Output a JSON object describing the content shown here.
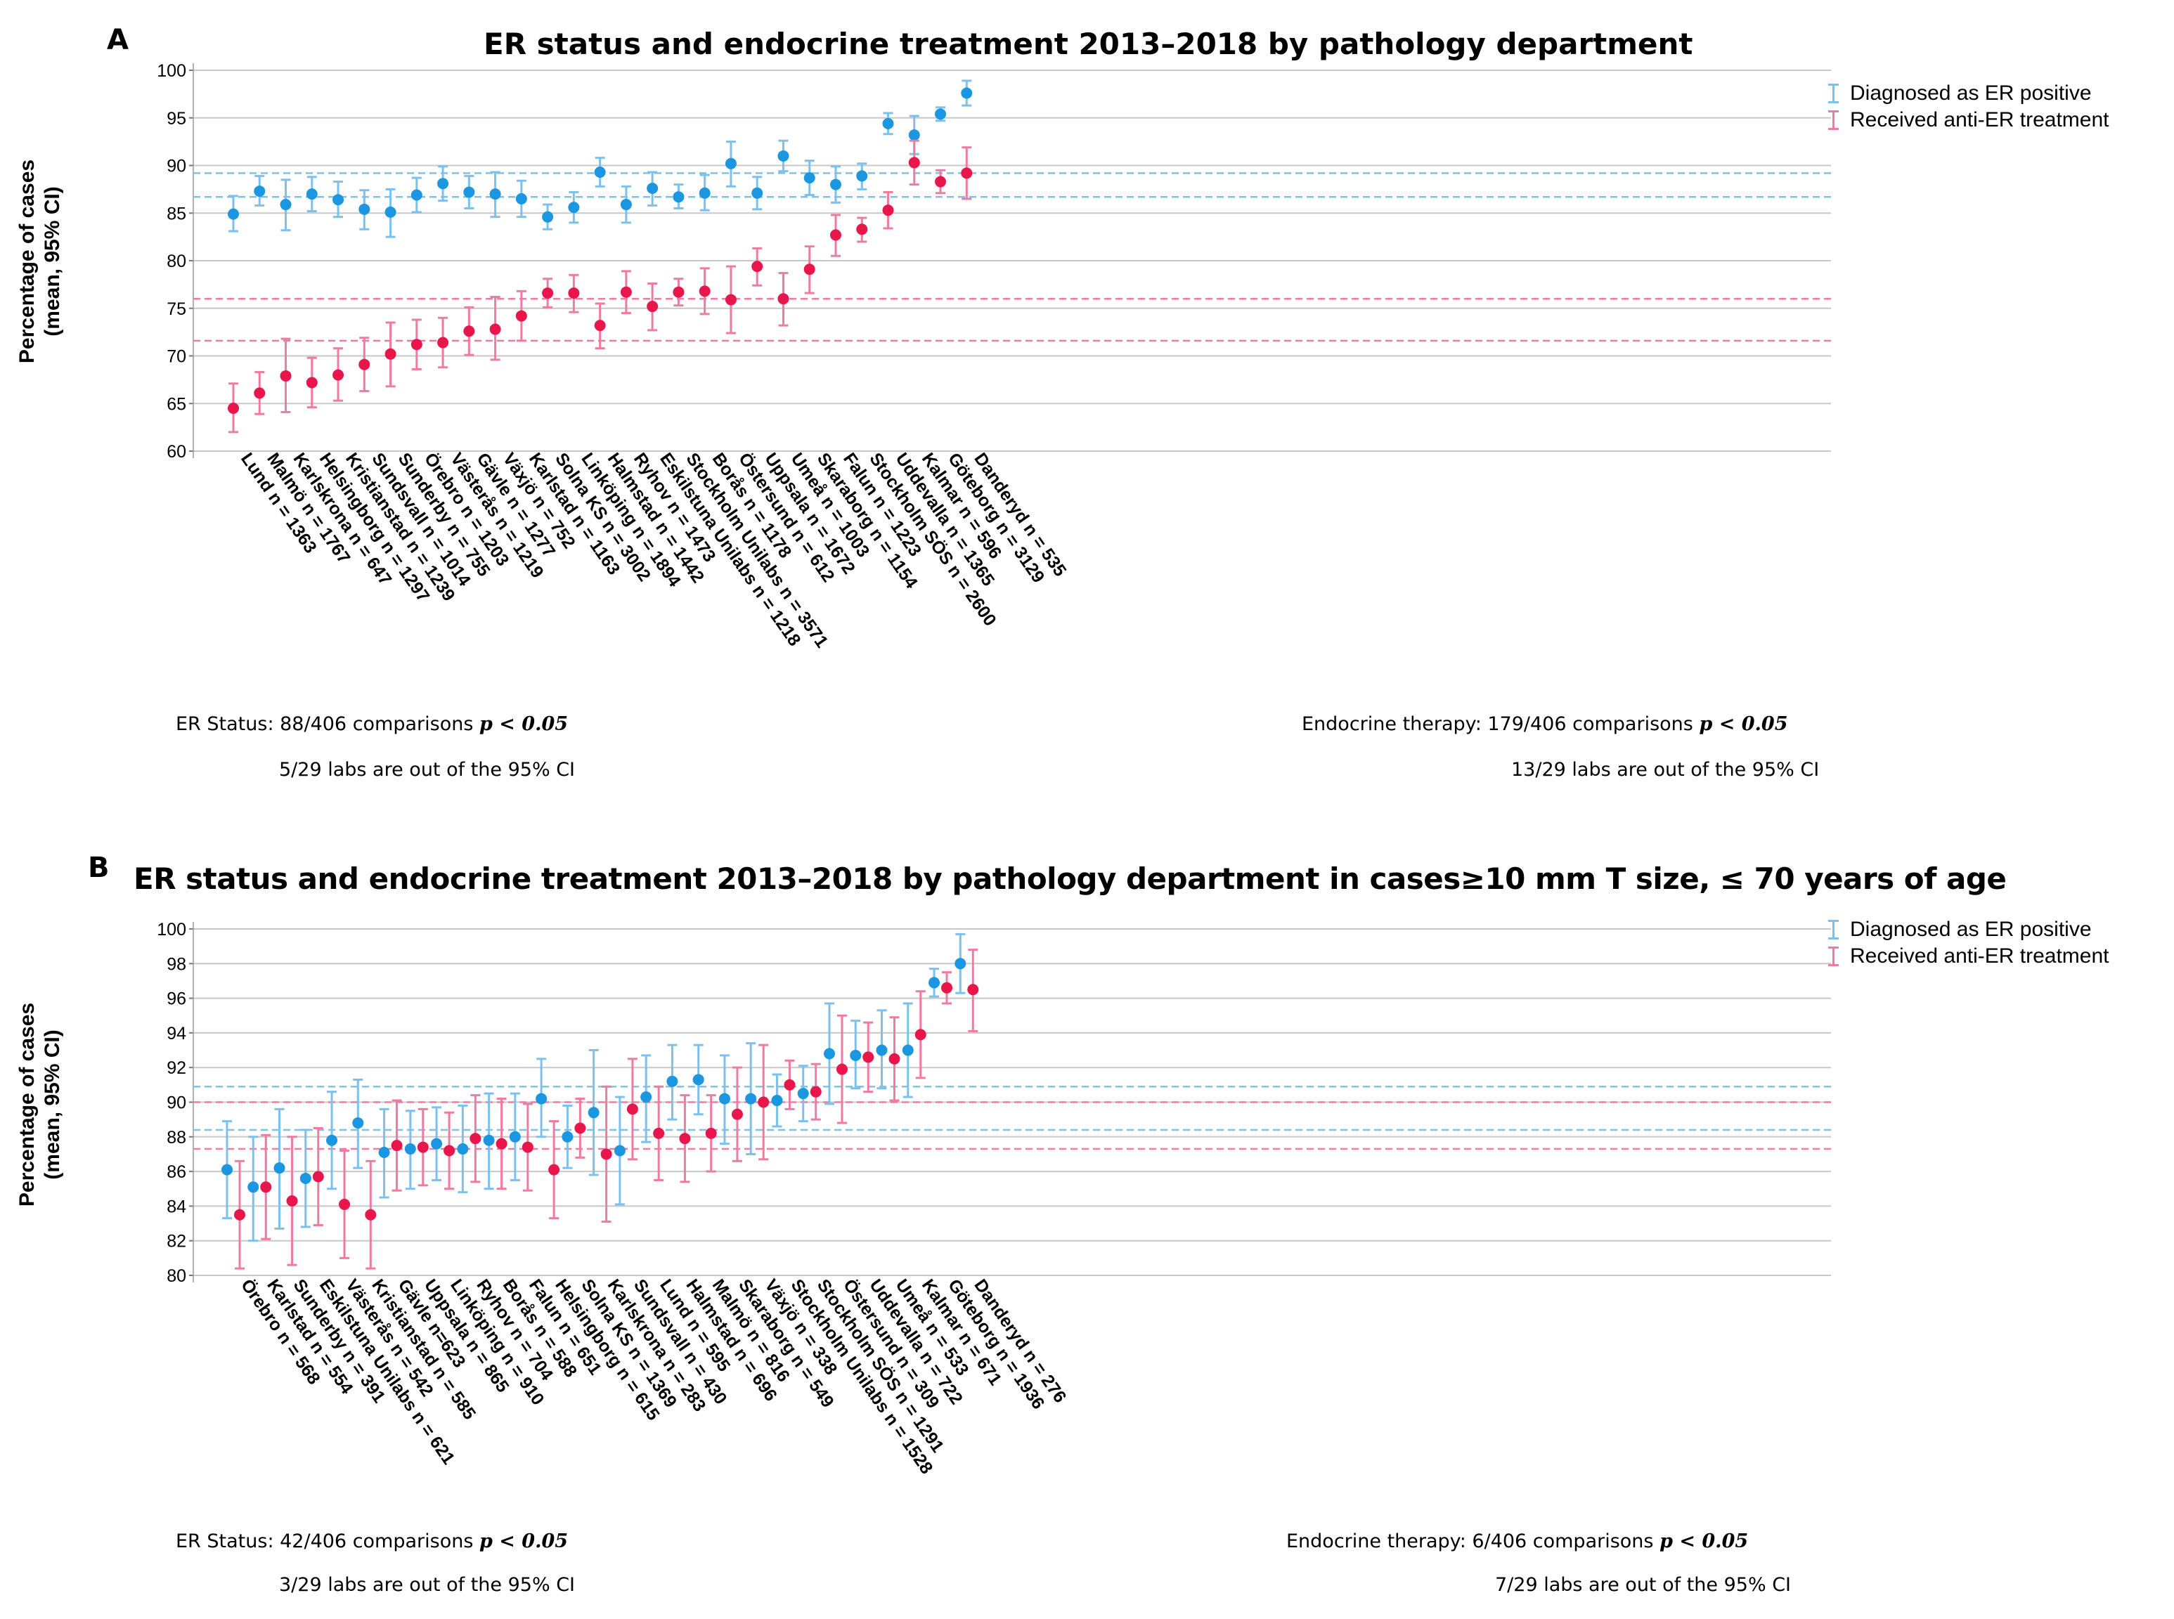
{
  "colors": {
    "er": "#1b96e0",
    "treat": "#e8164a",
    "ci_er": "#7cc0ee",
    "ci_treat": "#ef7ba0",
    "grid": "#c8c8c8"
  },
  "legend": {
    "er": "Diagnosed as ER positive",
    "treat": "Received anti-ER treatment"
  },
  "panels": [
    {
      "letter": "A",
      "title": "ER status and endocrine treatment 2013–2018 by pathology department",
      "notes": {
        "er_line1": "ER Status: 88/406 comparisons",
        "er_line2": "5/29 labs are out of the 95% CI",
        "et_line1": "Endocrine therapy: 179/406 comparisons",
        "et_line2": "13/29 labs are out of the 95% CI",
        "p_text": "p < 0.05"
      }
    },
    {
      "letter": "B",
      "title": "ER status and endocrine treatment 2013–2018 by pathology department in cases≥10 mm T size, ≤ 70 years of age",
      "notes": {
        "er_line1": "ER Status: 42/406 comparisons",
        "er_line2": "3/29 labs are out of the 95% CI",
        "et_line1": "Endocrine therapy: 6/406 comparisons",
        "et_line2": "7/29 labs are out of the 95% CI",
        "p_text": "p < 0.05"
      }
    }
  ],
  "chart_data": [
    {
      "type": "errorbar",
      "title": "ER status and endocrine treatment 2013–2018 by pathology department",
      "ylabel_line1": "Percentage of cases",
      "ylabel_line2": "(mean, 95% CI)",
      "ylim": [
        60,
        100
      ],
      "yticks": [
        60,
        65,
        70,
        75,
        80,
        85,
        90,
        95,
        100
      ],
      "categories": [
        "Lund n = 1363",
        "Malmö n = 1767",
        "Karlskrona n = 647",
        "Helsingborg n = 1297",
        "Kristianstad n = 1239",
        "Sundsvall n = 1014",
        "Sunderby n = 755",
        "Örebro n = 1203",
        "Västerås n = 1219",
        "Gävle n = 1277",
        "Växjö n = 752",
        "Karlstad n = 1163",
        "Solna KS n = 3002",
        "Linköping n = 1894",
        "Halmstad n = 1442",
        "Ryhov n = 1473",
        "Eskilstuna Unilabs n = 1218",
        "Stockholm Unilabs n = 3571",
        "Borås n = 1178",
        "Östersund n = 612",
        "Uppsala n = 1672",
        "Umeå n = 1003",
        "Skaraborg n = 1154",
        "Falun n = 1223",
        "Stockholm SÖS n = 2600",
        "Uddevalla n = 1365",
        "Kalmar n = 596",
        "Göteborg n = 3129",
        "Danderyd n = 535"
      ],
      "series": [
        {
          "name": "Diagnosed as ER positive",
          "values": [
            84.9,
            87.3,
            85.9,
            87.0,
            86.4,
            85.4,
            85.1,
            86.9,
            88.1,
            87.2,
            87.0,
            86.5,
            84.6,
            85.6,
            89.3,
            85.9,
            87.6,
            86.7,
            87.1,
            90.2,
            87.1,
            91.0,
            88.7,
            88.0,
            88.9,
            94.4,
            93.2,
            95.4,
            97.6
          ],
          "lower": [
            83.1,
            85.8,
            83.2,
            85.2,
            84.6,
            83.3,
            82.5,
            85.1,
            86.3,
            85.5,
            84.6,
            84.6,
            83.3,
            84.0,
            87.8,
            84.0,
            85.8,
            85.5,
            85.3,
            87.8,
            85.4,
            89.4,
            86.9,
            86.1,
            87.5,
            93.3,
            91.2,
            94.7,
            96.3
          ],
          "upper": [
            86.8,
            88.9,
            88.5,
            88.8,
            88.3,
            87.4,
            87.5,
            88.7,
            89.9,
            88.9,
            89.3,
            88.4,
            85.9,
            87.2,
            90.8,
            87.8,
            89.3,
            88.0,
            89.0,
            92.5,
            88.8,
            92.6,
            90.5,
            89.9,
            90.2,
            95.5,
            95.2,
            96.1,
            98.9
          ],
          "band": [
            86.7,
            89.2
          ]
        },
        {
          "name": "Received anti-ER treatment",
          "values": [
            64.5,
            66.1,
            67.9,
            67.2,
            68.0,
            69.1,
            70.2,
            71.2,
            71.4,
            72.6,
            72.8,
            74.2,
            76.6,
            76.6,
            73.2,
            76.7,
            75.2,
            76.7,
            76.8,
            75.9,
            79.4,
            76.0,
            79.1,
            82.7,
            83.3,
            85.3,
            90.3,
            88.3,
            89.2
          ],
          "lower": [
            62.0,
            63.9,
            64.1,
            64.6,
            65.3,
            66.3,
            66.8,
            68.6,
            68.8,
            70.1,
            69.6,
            71.6,
            75.1,
            74.6,
            70.8,
            74.5,
            72.7,
            75.3,
            74.4,
            72.4,
            77.4,
            73.2,
            76.6,
            80.5,
            82.0,
            83.4,
            88.0,
            87.1,
            86.5
          ],
          "upper": [
            67.1,
            68.3,
            71.8,
            69.8,
            70.8,
            71.9,
            73.5,
            73.8,
            74.0,
            75.1,
            76.2,
            76.8,
            78.1,
            78.5,
            75.5,
            78.9,
            77.6,
            78.1,
            79.2,
            79.4,
            81.3,
            78.7,
            81.5,
            84.8,
            84.5,
            87.2,
            92.6,
            89.5,
            91.9
          ],
          "band": [
            71.6,
            76.0
          ]
        }
      ]
    },
    {
      "type": "errorbar",
      "title": "ER status and endocrine treatment 2013–2018 by pathology department in cases≥10 mm T size, ≤ 70 years of age",
      "ylabel_line1": "Percentage of cases",
      "ylabel_line2": "(mean, 95% CI)",
      "ylim": [
        80,
        100
      ],
      "yticks": [
        80,
        82,
        84,
        86,
        88,
        90,
        92,
        94,
        96,
        98,
        100
      ],
      "categories": [
        "Örebro n = 568",
        "Karlstad n = 554",
        "Sunderby n = 391",
        "Eskilstuna Unilabs n = 621",
        "Västerås n = 542",
        "Kristianstad n = 585",
        "Gävle n=623",
        "Uppsala n = 865",
        "Linköping n = 910",
        "Ryhov n = 704",
        "Borås n = 588",
        "Falun n = 651",
        "Helsingborg n = 615",
        "Solna KS n = 1369",
        "Karlskrona n = 283",
        "Sundsvall n = 430",
        "Lund n = 595",
        "Halmstad n = 696",
        "Malmö n = 816",
        "Skaraborg n = 549",
        "Växjö n = 338",
        "Stockholm Unilabs n = 1528",
        "Stockholm SÖS n = 1291",
        "Östersund n = 309",
        "Uddevalla n = 722",
        "Umeå n = 533",
        "Kalmar n = 671",
        "Göteborg n = 1936",
        "Danderyd n = 276"
      ],
      "series": [
        {
          "name": "Diagnosed as ER positive",
          "values": [
            86.1,
            85.1,
            86.2,
            85.6,
            87.8,
            88.8,
            87.1,
            87.3,
            87.6,
            87.3,
            87.8,
            88.0,
            90.2,
            88.0,
            89.4,
            87.2,
            90.3,
            91.2,
            91.3,
            90.2,
            90.2,
            90.1,
            90.5,
            92.8,
            92.7,
            93.0,
            93.0,
            96.9,
            98.0
          ],
          "lower": [
            83.3,
            82.0,
            82.7,
            82.8,
            85.0,
            86.2,
            84.5,
            85.0,
            85.5,
            84.8,
            85.0,
            85.5,
            88.0,
            86.2,
            85.8,
            84.1,
            87.7,
            89.0,
            89.3,
            87.6,
            87.0,
            88.6,
            88.9,
            89.9,
            90.8,
            90.8,
            90.3,
            96.1,
            96.3
          ],
          "upper": [
            88.9,
            88.0,
            89.6,
            88.4,
            90.6,
            91.3,
            89.6,
            89.5,
            89.7,
            89.8,
            90.5,
            90.5,
            92.5,
            89.8,
            93.0,
            90.3,
            92.7,
            93.3,
            93.3,
            92.7,
            93.4,
            91.6,
            92.1,
            95.7,
            94.7,
            95.3,
            95.7,
            97.7,
            99.7
          ],
          "band": [
            88.4,
            90.9
          ]
        },
        {
          "name": "Received anti-ER treatment",
          "values": [
            83.5,
            85.1,
            84.3,
            85.7,
            84.1,
            83.5,
            87.5,
            87.4,
            87.2,
            87.9,
            87.6,
            87.4,
            86.1,
            88.5,
            87.0,
            89.6,
            88.2,
            87.9,
            88.2,
            89.3,
            90.0,
            91.0,
            90.6,
            91.9,
            92.6,
            92.5,
            93.9,
            96.6,
            96.5
          ],
          "lower": [
            80.4,
            82.1,
            80.6,
            82.9,
            81.0,
            80.4,
            84.9,
            85.2,
            85.0,
            85.4,
            85.0,
            84.9,
            83.3,
            86.8,
            83.1,
            86.7,
            85.5,
            85.4,
            86.0,
            86.6,
            86.7,
            89.6,
            89.0,
            88.8,
            90.6,
            90.1,
            91.4,
            95.7,
            94.1
          ],
          "upper": [
            86.6,
            88.1,
            88.0,
            88.5,
            87.2,
            86.6,
            90.1,
            89.6,
            89.4,
            90.4,
            90.2,
            89.9,
            88.9,
            90.2,
            90.9,
            92.5,
            90.9,
            90.4,
            90.4,
            92.0,
            93.3,
            92.4,
            92.2,
            95.0,
            94.6,
            94.9,
            96.4,
            97.5,
            98.8
          ],
          "band": [
            87.3,
            90.0
          ]
        }
      ]
    }
  ]
}
